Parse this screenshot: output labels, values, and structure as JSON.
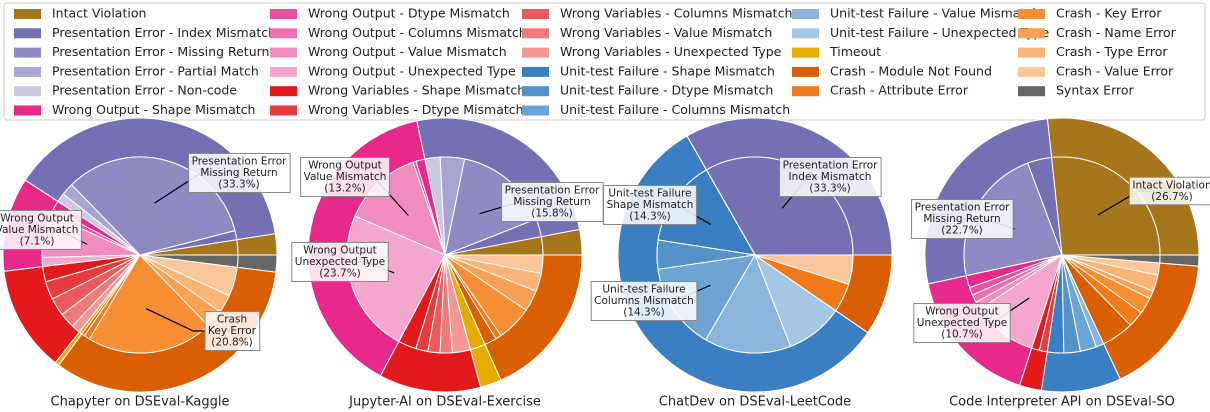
{
  "legend": {
    "labels": [
      "Intact Violation",
      "Presentation Error - Index Mismatch",
      "Presentation Error - Missing Return",
      "Presentation Error - Partial Match",
      "Presentation Error - Non-code",
      "Wrong Output - Shape Mismatch",
      "Wrong Output - Dtype Mismatch",
      "Wrong Output - Columns Mismatch",
      "Wrong Output - Value Mismatch",
      "Wrong Output - Unexpected Type",
      "Wrong Variables - Shape Mismatch",
      "Wrong Variables - Dtype Mismatch",
      "Wrong Variables - Columns Mismatch",
      "Wrong Variables - Value Mismatch",
      "Wrong Variables - Unexpected Type",
      "Unit-test Failure - Shape Mismatch",
      "Unit-test Failure - Dtype Mismatch",
      "Unit-test Failure - Columns Mismatch",
      "Unit-test Failure - Value Mismatch",
      "Unit-test Failure - Unexpected Type",
      "Timeout",
      "Crash - Module Not Found",
      "Crash - Attribute Error",
      "Crash - Key Error",
      "Crash - Name Error",
      "Crash - Type Error",
      "Crash - Value Error",
      "Syntax Error"
    ],
    "colors": [
      "#a6761d",
      "#7570b3",
      "#8f8ac4",
      "#a9a5d1",
      "#cbc9e2",
      "#e7298a",
      "#e84f9e",
      "#ec6fae",
      "#f08cbe",
      "#f4a6cd",
      "#e31a1c",
      "#e73c3d",
      "#eb5b5c",
      "#ef7a7a",
      "#f39797",
      "#3a7fc1",
      "#5592ca",
      "#6ea4d4",
      "#8ab6dd",
      "#a4c7e6",
      "#e6ab02",
      "#d95f02",
      "#f27a1a",
      "#f68e34",
      "#f8a155",
      "#f9b477",
      "#fbc699",
      "#666666"
    ]
  },
  "group_colors": [
    "#a6761d",
    "#7570b3",
    "#e7298a",
    "#e31a1c",
    "#3a7fc1",
    "#e6ab02",
    "#d95f02",
    "#666666"
  ],
  "chart_data": [
    {
      "type": "pie",
      "title": "Chapyter on DSEval-Kaggle",
      "values": [
        2.5,
        1.5,
        33.3,
        2,
        1.5,
        1.5,
        1,
        0,
        7.1,
        1.5,
        2.5,
        3,
        3,
        2.5,
        1.5,
        0,
        0,
        0,
        0,
        0,
        0.5,
        0.5,
        1,
        20.8,
        3,
        3,
        4.8,
        2
      ],
      "outer_values": [
        2.5,
        38.3,
        11.1,
        12.5,
        0,
        0.5,
        33.1,
        2
      ],
      "value_labels": [
        null,
        null,
        [
          "Presentation Error",
          "Missing Return",
          "(33.3%)"
        ],
        null,
        null,
        null,
        null,
        null,
        [
          "Wrong Output",
          "Value Mismatch",
          "(7.1%)"
        ],
        null,
        null,
        null,
        null,
        null,
        null,
        null,
        null,
        null,
        null,
        null,
        null,
        null,
        null,
        [
          "Crash",
          "Key Error",
          "(20.8%)"
        ],
        null,
        null,
        null,
        null
      ]
    },
    {
      "type": "pie",
      "title": "Jupyter-AI on DSEval-Exercise",
      "values": [
        3,
        3,
        15.8,
        4,
        2.5,
        1.5,
        0.5,
        0,
        13.2,
        23.7,
        3,
        2,
        2,
        2,
        3,
        0,
        0,
        0,
        0,
        0,
        2.5,
        2,
        1,
        5.8,
        3.5,
        3,
        3,
        0
      ],
      "outer_values": [
        3,
        25.3,
        38.9,
        12,
        0,
        2.5,
        18.3,
        0
      ],
      "value_labels": [
        null,
        null,
        [
          "Presentation Error",
          "Missing Return",
          "(15.8%)"
        ],
        null,
        null,
        null,
        null,
        null,
        [
          "Wrong Output",
          "Value Mismatch",
          "(13.2%)"
        ],
        [
          "Wrong Output",
          "Unexpected Type",
          "(23.7%)"
        ],
        null,
        null,
        null,
        null,
        null,
        null,
        null,
        null,
        null,
        null,
        null,
        null,
        null,
        null,
        null,
        null,
        null,
        null
      ]
    },
    {
      "type": "pie",
      "title": "ChatDev on DSEval-LeetCode",
      "values": [
        0,
        33.3,
        0,
        0,
        0,
        0,
        0,
        0,
        0,
        0,
        0,
        0,
        0,
        0,
        0,
        14.3,
        4.8,
        14.3,
        14.3,
        9.5,
        0,
        0,
        4.8,
        0,
        0,
        0,
        4.8,
        0
      ],
      "outer_values": [
        0,
        33.3,
        0,
        0,
        57.2,
        0,
        9.6,
        0
      ],
      "value_labels": [
        null,
        [
          "Presentation Error",
          "Index Mismatch",
          "(33.3%)"
        ],
        null,
        null,
        null,
        null,
        null,
        null,
        null,
        null,
        null,
        null,
        null,
        null,
        null,
        [
          "Unit-test Failure",
          "Shape Mismatch",
          "(14.3%)"
        ],
        null,
        [
          "Unit-test Failure",
          "Columns Mismatch",
          "(14.3%)"
        ],
        null,
        null,
        null,
        null,
        null,
        null,
        null,
        null,
        null,
        null
      ]
    },
    {
      "type": "pie",
      "title": "Code Interpreter API on DSEval-SO",
      "values": [
        26.7,
        4,
        22.7,
        0,
        0,
        2,
        1.3,
        1.3,
        1.3,
        10.7,
        1.3,
        1.3,
        0,
        0,
        0,
        2.7,
        2.7,
        2.7,
        1.3,
        0,
        0,
        5.3,
        2.7,
        2.7,
        1.3,
        2.7,
        2,
        1.3
      ],
      "outer_values": [
        26.7,
        26.7,
        16.6,
        2.6,
        9.4,
        0,
        16.7,
        1.3
      ],
      "value_labels": [
        [
          "Intact Violation",
          "(26.7%)"
        ],
        null,
        [
          "Presentation Error",
          "Missing Return",
          "(22.7%)"
        ],
        null,
        null,
        null,
        null,
        null,
        null,
        [
          "Wrong Output",
          "Unexpected Type",
          "(10.7%)"
        ],
        null,
        null,
        null,
        null,
        null,
        null,
        null,
        null,
        null,
        null,
        null,
        null,
        null,
        null,
        null,
        null,
        null,
        null
      ]
    }
  ]
}
